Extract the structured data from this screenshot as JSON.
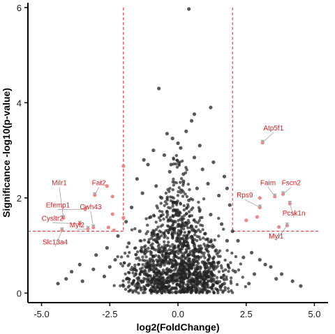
{
  "colors": {
    "point": "#222222",
    "highlight": "#f08080",
    "threshold": "#e31a1c",
    "label": "#e31a1c",
    "leader": "#aaaaaa",
    "axis": "#000000"
  },
  "chart_data": {
    "type": "scatter",
    "title": "",
    "xlabel": "log2(FoldChange)",
    "ylabel": "Significance -log10(p-value)",
    "xlim": [
      -5.5,
      5.5
    ],
    "ylim": [
      -0.2,
      6.1
    ],
    "x_ticks": [
      -5.0,
      -2.5,
      0.0,
      2.5,
      5.0
    ],
    "x_tick_labels": [
      "-5.0",
      "-2.5",
      "0.0",
      "2.5",
      "5.0"
    ],
    "y_ticks": [
      0,
      2,
      4,
      6
    ],
    "y_tick_labels": [
      "0",
      "2",
      "4",
      "6"
    ],
    "grid": false,
    "thresholds": {
      "log2fc": [
        -2,
        2
      ],
      "neglog10p": 1.3
    },
    "series": [
      {
        "role": "not-significant",
        "points": [
          [
            0.4,
            5.97
          ],
          [
            -0.7,
            4.3
          ],
          [
            0.6,
            3.76
          ],
          [
            0.5,
            3.62
          ],
          [
            -0.4,
            3.35
          ],
          [
            0.3,
            3.4
          ],
          [
            -0.2,
            3.25
          ],
          [
            0.8,
            3.1
          ],
          [
            -0.9,
            3.0
          ],
          [
            0.1,
            3.05
          ],
          [
            -0.5,
            2.9
          ],
          [
            0.6,
            2.85
          ],
          [
            1.3,
            2.75
          ],
          [
            -1.1,
            2.7
          ],
          [
            0.9,
            2.6
          ],
          [
            -0.3,
            2.55
          ],
          [
            1.7,
            2.45
          ],
          [
            -1.5,
            2.4
          ],
          [
            0.2,
            2.35
          ],
          [
            1.1,
            2.3
          ],
          [
            -0.8,
            2.25
          ],
          [
            0.7,
            2.2
          ],
          [
            -1.3,
            2.1
          ],
          [
            1.5,
            2.05
          ],
          [
            -0.6,
            2.0
          ],
          [
            0.4,
            1.95
          ],
          [
            1.9,
            1.85
          ],
          [
            -1.7,
            1.8
          ],
          [
            0.8,
            1.75
          ],
          [
            -0.4,
            1.7
          ],
          [
            1.2,
            1.65
          ],
          [
            -1.0,
            1.6
          ],
          [
            0.1,
            1.55
          ],
          [
            -1.9,
            1.5
          ],
          [
            1.6,
            1.45
          ],
          [
            0.5,
            1.4
          ],
          [
            -0.2,
            1.35
          ],
          [
            -1.4,
            1.3
          ],
          [
            1.0,
            1.25
          ],
          [
            0.3,
            1.2
          ],
          [
            -0.7,
            1.15
          ],
          [
            1.8,
            1.1
          ],
          [
            -1.8,
            1.05
          ],
          [
            0.6,
            1.0
          ],
          [
            -0.5,
            0.95
          ],
          [
            1.4,
            0.9
          ],
          [
            -1.2,
            0.85
          ],
          [
            0.2,
            0.8
          ],
          [
            2.4,
            0.75
          ],
          [
            -2.3,
            0.7
          ],
          [
            0.9,
            0.65
          ],
          [
            -0.9,
            0.6
          ],
          [
            1.3,
            0.55
          ],
          [
            -1.6,
            0.5
          ],
          [
            0.0,
            0.45
          ],
          [
            2.8,
            0.4
          ],
          [
            -2.7,
            0.35
          ],
          [
            0.7,
            0.3
          ],
          [
            -0.3,
            0.25
          ],
          [
            1.7,
            0.2
          ],
          [
            -2.0,
            0.15
          ],
          [
            0.4,
            0.1
          ],
          [
            -0.6,
            0.05
          ],
          [
            3.2,
            0.6
          ],
          [
            -3.1,
            0.5
          ],
          [
            2.1,
            0.45
          ],
          [
            -2.5,
            0.55
          ],
          [
            3.6,
            0.3
          ],
          [
            -3.5,
            0.25
          ],
          [
            2.6,
            0.2
          ],
          [
            -1.1,
            0.3
          ],
          [
            1.1,
            0.35
          ],
          [
            -0.1,
            0.4
          ],
          [
            0.15,
            0.6
          ],
          [
            -0.15,
            0.7
          ],
          [
            0.05,
            0.9
          ],
          [
            -0.05,
            1.1
          ],
          [
            0.1,
            1.3
          ],
          [
            -0.1,
            1.5
          ],
          [
            0.05,
            1.7
          ],
          [
            -0.05,
            1.9
          ],
          [
            0.2,
            2.5
          ],
          [
            -0.25,
            2.7
          ],
          [
            0.0,
            3.15
          ],
          [
            -2.2,
            1.2
          ],
          [
            2.2,
            1.1
          ],
          [
            -2.6,
            0.95
          ],
          [
            2.7,
            0.85
          ],
          [
            -3.0,
            0.8
          ],
          [
            3.0,
            0.7
          ],
          [
            -3.6,
            0.6
          ],
          [
            3.4,
            0.55
          ],
          [
            -3.9,
            0.45
          ],
          [
            3.8,
            0.4
          ],
          [
            -4.1,
            0.3
          ],
          [
            4.2,
            0.25
          ],
          [
            -4.4,
            0.2
          ],
          [
            4.5,
            0.15
          ],
          [
            1.2,
            3.9
          ],
          [
            -1.25,
            2.8
          ],
          [
            1.8,
            2.2
          ],
          [
            2.0,
            1.3
          ]
        ]
      },
      {
        "role": "significant",
        "points": [
          [
            3.1,
            3.16
          ],
          [
            -2.0,
            2.67
          ],
          [
            -2.6,
            2.25
          ],
          [
            -3.05,
            2.06
          ],
          [
            3.0,
            2.0
          ],
          [
            -2.4,
            2.03
          ],
          [
            3.55,
            2.03
          ],
          [
            3.85,
            2.08
          ],
          [
            4.1,
            1.88
          ],
          [
            3.0,
            1.8
          ],
          [
            -3.4,
            1.76
          ],
          [
            -2.4,
            1.66
          ],
          [
            -2.0,
            1.58
          ],
          [
            2.9,
            1.6
          ],
          [
            -4.2,
            1.58
          ],
          [
            -3.6,
            1.46
          ],
          [
            2.5,
            1.53
          ],
          [
            -2.55,
            1.38
          ],
          [
            -3.1,
            1.38
          ],
          [
            3.7,
            1.39
          ],
          [
            -4.25,
            1.32
          ],
          [
            -2.35,
            1.32
          ],
          [
            4.0,
            1.42
          ],
          [
            -3.3,
            1.35
          ]
        ]
      }
    ],
    "labels": [
      {
        "text": "Atp5f1",
        "x": 3.1,
        "y": 3.16,
        "lx": 3.5,
        "ly": 3.42
      },
      {
        "text": "Milr1",
        "x": -4.2,
        "y": 1.58,
        "lx": -4.35,
        "ly": 2.27
      },
      {
        "text": "Fat2",
        "x": -3.05,
        "y": 2.06,
        "lx": -2.9,
        "ly": 2.27
      },
      {
        "text": "Faim",
        "x": 3.55,
        "y": 2.03,
        "lx": 3.3,
        "ly": 2.27
      },
      {
        "text": "Fscn2",
        "x": 3.85,
        "y": 2.08,
        "lx": 4.15,
        "ly": 2.27
      },
      {
        "text": "Rps9",
        "x": 3.0,
        "y": 1.8,
        "lx": 2.45,
        "ly": 2.01
      },
      {
        "text": "Efemp1",
        "x": -3.4,
        "y": 1.76,
        "lx": -4.4,
        "ly": 1.8
      },
      {
        "text": "Cwh43",
        "x": -3.1,
        "y": 1.38,
        "lx": -3.2,
        "ly": 1.76
      },
      {
        "text": "Pcsk1n",
        "x": 4.1,
        "y": 1.88,
        "lx": 4.25,
        "ly": 1.63
      },
      {
        "text": "Cysltr2",
        "x": -3.6,
        "y": 1.46,
        "lx": -4.6,
        "ly": 1.52
      },
      {
        "text": "Myl2",
        "x": -3.3,
        "y": 1.35,
        "lx": -3.7,
        "ly": 1.38
      },
      {
        "text": "Myl1",
        "x": 4.0,
        "y": 1.42,
        "lx": 3.6,
        "ly": 1.15
      },
      {
        "text": "Slc13a4",
        "x": -4.25,
        "y": 1.32,
        "lx": -4.5,
        "ly": 1.02
      }
    ]
  }
}
